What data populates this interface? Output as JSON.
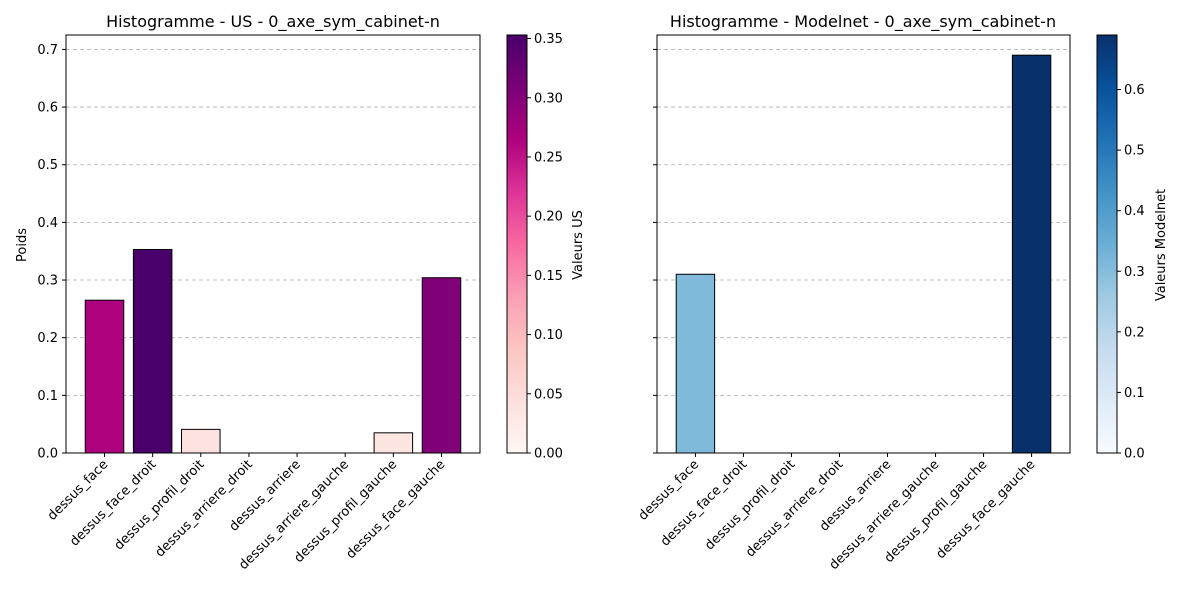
{
  "chart_data": [
    {
      "type": "bar",
      "title": "Histogramme - US - 0_axe_sym_cabinet-n",
      "ylabel": "Poids",
      "ylim": [
        0,
        0.725
      ],
      "yticks": [
        "0.0",
        "0.1",
        "0.2",
        "0.3",
        "0.4",
        "0.5",
        "0.6",
        "0.7"
      ],
      "grid": "y-dashed",
      "categories": [
        "dessus_face",
        "dessus_face_droit",
        "dessus_profil_droit",
        "dessus_arriere_droit",
        "dessus_arriere",
        "dessus_arriere_gauche",
        "dessus_profil_gauche",
        "dessus_face_gauche"
      ],
      "values": [
        0.265,
        0.353,
        0.041,
        0.0,
        0.0,
        0.0,
        0.035,
        0.304
      ],
      "colormap": "RdPu",
      "colorbar": {
        "label": "Valeurs US",
        "range": [
          0,
          0.353
        ],
        "ticks": [
          "0.00",
          "0.05",
          "0.10",
          "0.15",
          "0.20",
          "0.25",
          "0.30",
          "0.35"
        ]
      }
    },
    {
      "type": "bar",
      "title": "Histogramme - Modelnet - 0_axe_sym_cabinet-n",
      "ylabel": "",
      "ylim": [
        0,
        0.725
      ],
      "yticks_shared": true,
      "grid": "y-dashed",
      "categories": [
        "dessus_face",
        "dessus_face_droit",
        "dessus_profil_droit",
        "dessus_arriere_droit",
        "dessus_arriere",
        "dessus_arriere_gauche",
        "dessus_profil_gauche",
        "dessus_face_gauche"
      ],
      "values": [
        0.31,
        0.0,
        0.0,
        0.0,
        0.0,
        0.0,
        0.0,
        0.69
      ],
      "colormap": "Blues",
      "colorbar": {
        "label": "Valeurs Modelnet",
        "range": [
          0,
          0.69
        ],
        "ticks": [
          "0.0",
          "0.1",
          "0.2",
          "0.3",
          "0.4",
          "0.5",
          "0.6"
        ]
      }
    }
  ],
  "colors": {
    "rdpu": [
      "#fff7f3",
      "#fde0dd",
      "#fcc5c0",
      "#fa9fb5",
      "#f768a1",
      "#dd3497",
      "#ae017e",
      "#7a0177",
      "#49006a"
    ],
    "blues": [
      "#f7fbff",
      "#deebf7",
      "#c6dbef",
      "#9ecae1",
      "#6baed6",
      "#4292c6",
      "#2171b5",
      "#08519c",
      "#08306b"
    ]
  }
}
